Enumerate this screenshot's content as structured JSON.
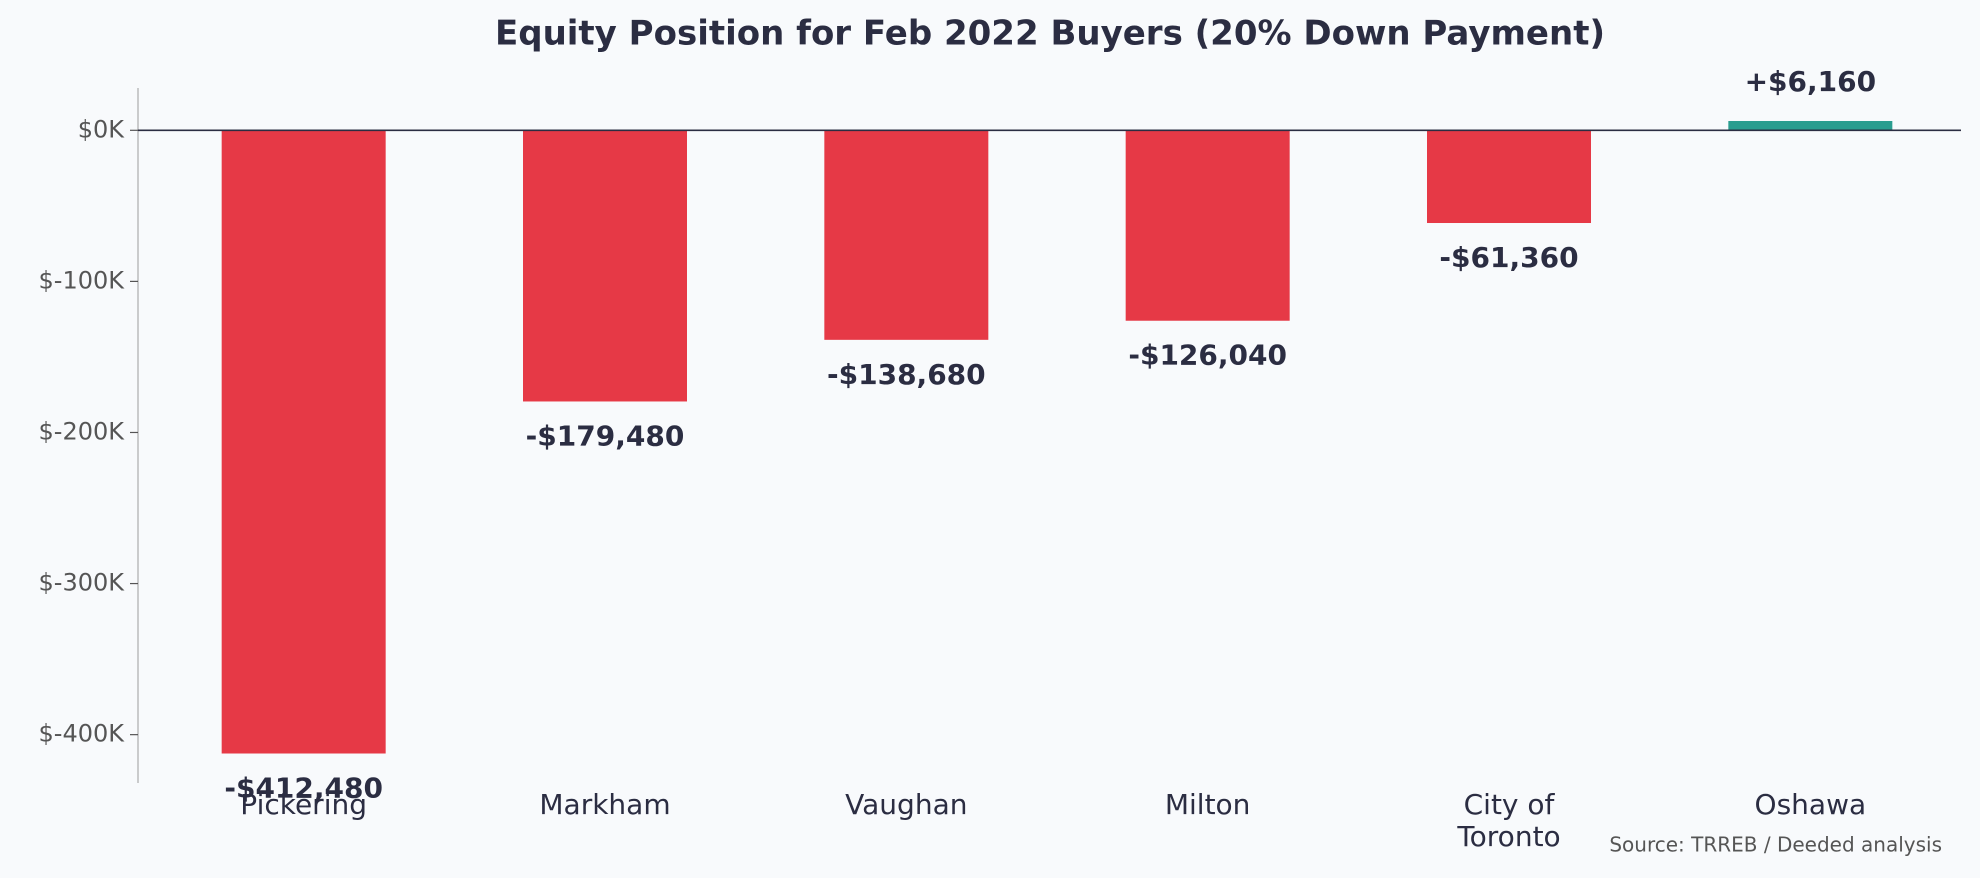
{
  "chart_data": {
    "type": "bar",
    "title": "Equity Position for Feb 2022 Buyers (20% Down Payment)",
    "categories": [
      "Pickering",
      "Markham",
      "Vaughan",
      "Milton",
      "City of Toronto",
      "Oshawa"
    ],
    "values": [
      -412480,
      -179480,
      -138680,
      -126040,
      -61360,
      6160
    ],
    "value_labels": [
      "-$412,480",
      "-$179,480",
      "-$138,680",
      "-$126,040",
      "-$61,360",
      "+$6,160"
    ],
    "negative_color": "#e63946",
    "positive_color": "#2a9d8f",
    "ylim": [
      -432000,
      28000
    ],
    "yticks": [
      {
        "value": 0,
        "label": "$0K"
      },
      {
        "value": -100000,
        "label": "$-100K"
      },
      {
        "value": -200000,
        "label": "$-200K"
      },
      {
        "value": -300000,
        "label": "$-300K"
      },
      {
        "value": -400000,
        "label": "$-400K"
      }
    ],
    "grid": false,
    "annotation": "Source: TRREB / Deeded analysis"
  }
}
